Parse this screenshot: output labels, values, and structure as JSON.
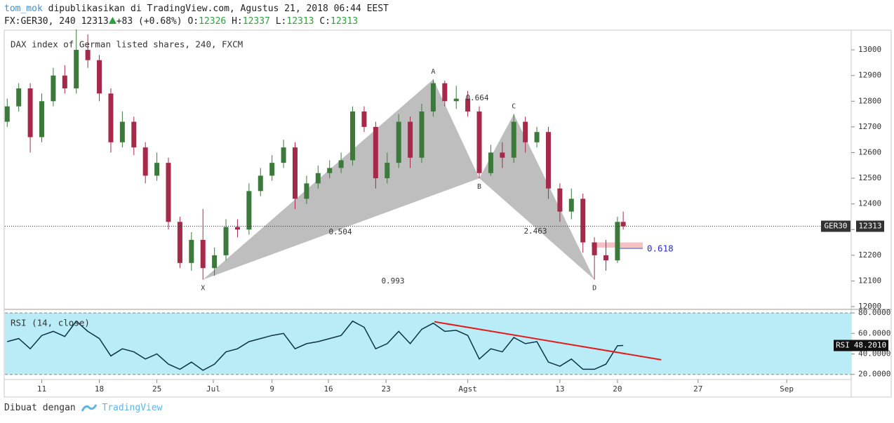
{
  "header": {
    "user": "tom_mok",
    "published": "dipublikasikan di TradingView.com, Agustus 21, 2018 06:44 EEST",
    "symbol": "FX:GER30, 240",
    "price": "12313",
    "change": "+83 (+0.68%)",
    "ohlc": [
      {
        "label": "O:",
        "value": "12326"
      },
      {
        "label": "H:",
        "value": "12337"
      },
      {
        "label": "L:",
        "value": "12313"
      },
      {
        "label": "C:",
        "value": "12313"
      }
    ]
  },
  "footer": {
    "made_with": "Dibuat dengan",
    "brand": "TradingView"
  },
  "chart_data": [
    {
      "type": "candlestick",
      "title": "DAX index of German listed shares, 240, FXCM",
      "x": [
        -3,
        -2,
        -1,
        0,
        1,
        2,
        3,
        4,
        5,
        6,
        7,
        8,
        9,
        10,
        11,
        12,
        13,
        14,
        15,
        16,
        17,
        18,
        19,
        20,
        21,
        22,
        23,
        24,
        25,
        26,
        27,
        28,
        29,
        30,
        31,
        32,
        33,
        34,
        35,
        36,
        37,
        38,
        39,
        40,
        41,
        42,
        43,
        44,
        45,
        46,
        47,
        48,
        49,
        50,
        50.5
      ],
      "open": [
        12720,
        12780,
        12850,
        12660,
        12800,
        12900,
        12850,
        13000,
        12960,
        12830,
        12640,
        12720,
        12620,
        12510,
        12560,
        12330,
        12170,
        12260,
        12150,
        12200,
        12310,
        12300,
        12450,
        12510,
        12560,
        12620,
        12420,
        12480,
        12520,
        12540,
        12570,
        12760,
        12700,
        12500,
        12560,
        12720,
        12580,
        12760,
        12870,
        12800,
        12810,
        12760,
        12520,
        12600,
        12580,
        12720,
        12640,
        12680,
        12460,
        12370,
        12420,
        12250,
        12200,
        12180,
        12330
      ],
      "high": [
        12810,
        12870,
        12870,
        12830,
        12930,
        12940,
        13080,
        13060,
        12980,
        12850,
        12760,
        12740,
        12640,
        12600,
        12580,
        12350,
        12290,
        12380,
        12230,
        12340,
        12340,
        12480,
        12540,
        12590,
        12650,
        12640,
        12510,
        12550,
        12570,
        12600,
        12780,
        12780,
        12720,
        12600,
        12750,
        12740,
        12790,
        12885,
        12880,
        12860,
        12840,
        12780,
        12630,
        12640,
        12750,
        12740,
        12700,
        12700,
        12480,
        12460,
        12440,
        12270,
        12260,
        12350,
        12370
      ],
      "low": [
        12700,
        12760,
        12600,
        12640,
        12780,
        12830,
        12830,
        12930,
        12800,
        12600,
        12620,
        12590,
        12480,
        12490,
        12300,
        12150,
        12140,
        12105,
        12120,
        12180,
        12270,
        12280,
        12430,
        12490,
        12540,
        12380,
        12400,
        12460,
        12500,
        12520,
        12550,
        12680,
        12460,
        12480,
        12540,
        12540,
        12560,
        12740,
        12780,
        12770,
        12740,
        12500,
        12510,
        12540,
        12560,
        12600,
        12620,
        12420,
        12330,
        12340,
        12210,
        12105,
        12140,
        12170,
        12300
      ],
      "close": [
        12780,
        12850,
        12660,
        12800,
        12900,
        12850,
        13000,
        12960,
        12830,
        12640,
        12720,
        12620,
        12510,
        12560,
        12330,
        12170,
        12260,
        12150,
        12200,
        12310,
        12300,
        12450,
        12510,
        12560,
        12620,
        12420,
        12480,
        12520,
        12540,
        12570,
        12760,
        12700,
        12500,
        12560,
        12720,
        12580,
        12760,
        12870,
        12800,
        12810,
        12760,
        12520,
        12600,
        12580,
        12720,
        12640,
        12680,
        12460,
        12370,
        12420,
        12250,
        12200,
        12180,
        12330,
        12313
      ],
      "up_color": "#3c7a3c",
      "down_color": "#a52a4a",
      "xlim": [
        -3.2,
        70.3
      ],
      "xticks": [
        {
          "value": 0,
          "label": "11"
        },
        {
          "value": 5,
          "label": "18"
        },
        {
          "value": 10,
          "label": "25"
        },
        {
          "value": 14.9,
          "label": "Jul"
        },
        {
          "value": 20,
          "label": "9"
        },
        {
          "value": 24.9,
          "label": "16"
        },
        {
          "value": 29.9,
          "label": "23"
        },
        {
          "value": 37,
          "label": "Agst"
        },
        {
          "value": 45,
          "label": "13"
        },
        {
          "value": 50,
          "label": "20"
        },
        {
          "value": 57,
          "label": "27"
        },
        {
          "value": 64.7,
          "label": "Sep"
        }
      ],
      "ylim": [
        11992,
        13074
      ],
      "yticks": [
        12000,
        12100,
        12200,
        12300,
        12400,
        12500,
        12600,
        12700,
        12800,
        12900,
        13000
      ],
      "last_price": 12313,
      "last_label": "GER30",
      "pattern": {
        "labels": [
          "X",
          "A",
          "B",
          "C",
          "D"
        ],
        "x": [
          14,
          34,
          38,
          41,
          48
        ],
        "y": [
          12105,
          12885,
          12500,
          12750,
          12105
        ],
        "ratios": [
          0.504,
          0.664,
          2.463,
          0.993,
          0.618
        ],
        "color": "#b3b3b3"
      },
      "target_zone": [
        12230,
        12250
      ],
      "fib_level": 12227
    },
    {
      "type": "line",
      "title": "RSI (14, close)",
      "x": [
        -3,
        -2,
        -1,
        0,
        1,
        2,
        3,
        4,
        5,
        6,
        7,
        8,
        9,
        10,
        11,
        12,
        13,
        14,
        15,
        16,
        17,
        18,
        19,
        20,
        21,
        22,
        23,
        24,
        25,
        26,
        27,
        28,
        29,
        30,
        31,
        32,
        33,
        34,
        35,
        36,
        37,
        38,
        39,
        40,
        41,
        42,
        43,
        44,
        45,
        46,
        47,
        48,
        49,
        50,
        50.5
      ],
      "values": [
        52,
        55,
        45,
        58,
        62,
        57,
        72,
        62,
        55,
        38,
        45,
        42,
        35,
        40,
        30,
        25,
        32,
        24,
        30,
        42,
        45,
        52,
        55,
        58,
        60,
        45,
        50,
        52,
        55,
        58,
        72,
        66,
        45,
        50,
        62,
        50,
        64,
        70,
        62,
        63,
        58,
        35,
        45,
        42,
        56,
        50,
        52,
        32,
        28,
        35,
        25,
        25,
        30,
        48,
        48.201
      ],
      "color": "#0c3245",
      "ylim": [
        15.7,
        82.1
      ],
      "yticks": [
        {
          "value": 20,
          "label": "20.0000"
        },
        {
          "value": 40,
          "label": "40.0000"
        },
        {
          "value": 60,
          "label": "60.0000"
        },
        {
          "value": 80,
          "label": "80.0000"
        }
      ],
      "band": [
        20,
        80
      ],
      "last_value": {
        "value": 48.201,
        "label": "48.2010"
      },
      "last_label": "RSI",
      "trendline": {
        "x": [
          34.1,
          53.8
        ],
        "values": [
          71.4,
          34.3
        ],
        "color": "#e31b1b"
      }
    }
  ]
}
